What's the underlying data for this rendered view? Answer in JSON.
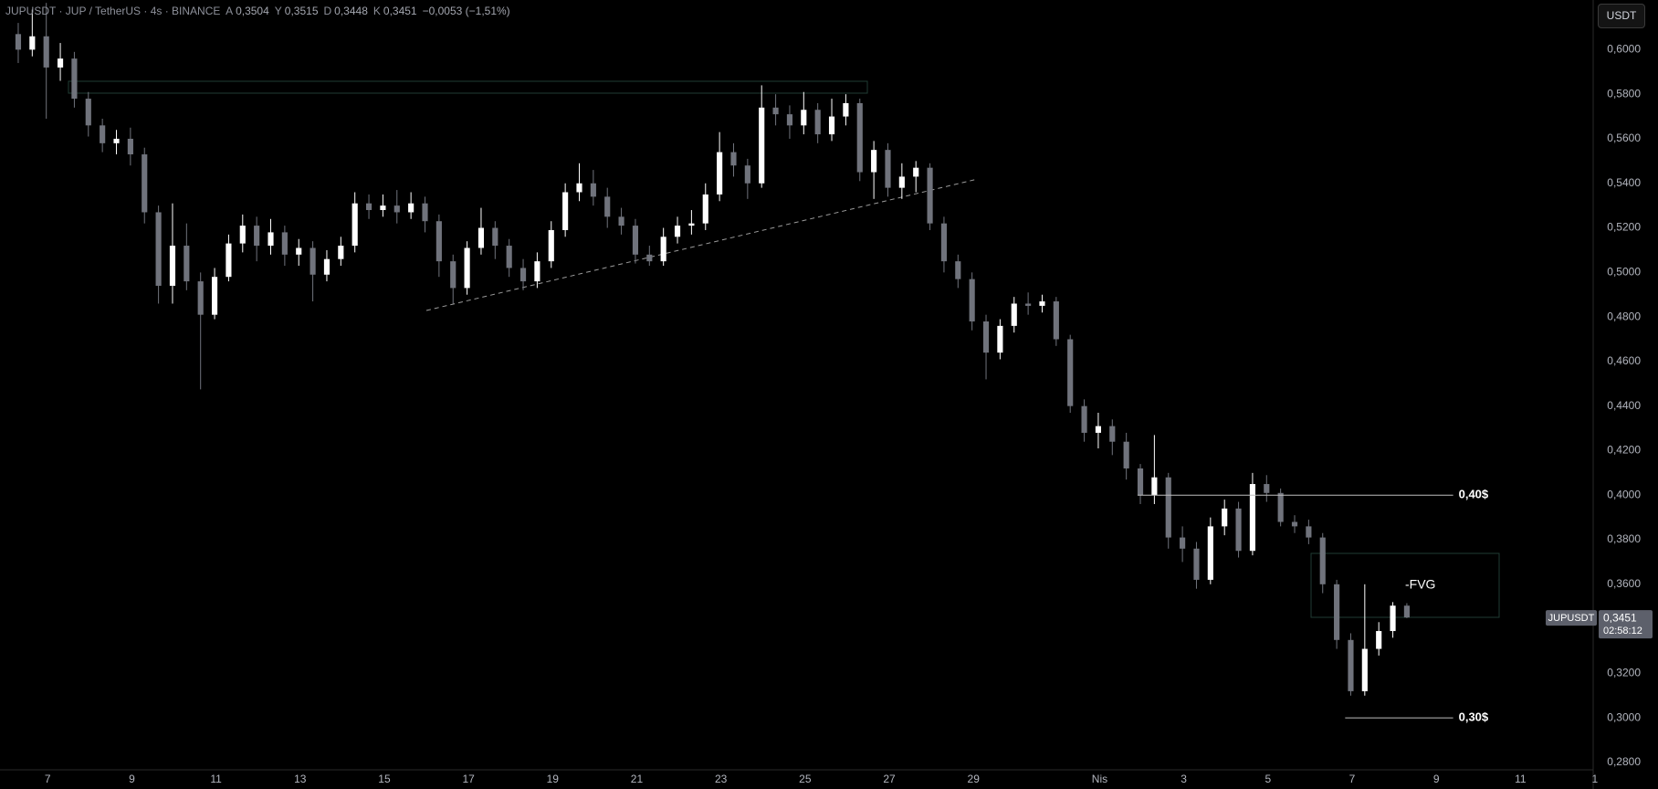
{
  "chart_data": {
    "type": "candlestick",
    "title": "JUPUSDT · JUP / TetherUS · 4s · BINANCE",
    "ohlc_legend": [
      {
        "key": "A",
        "value": "0,3504"
      },
      {
        "key": "Y",
        "value": "0,3515"
      },
      {
        "key": "D",
        "value": "0,3448"
      },
      {
        "key": "K",
        "value": "0,3451"
      }
    ],
    "change": "−0,0053 (−1,51%)",
    "up_color": "#ffffff",
    "down_color": "#70737c",
    "categories": [
      null,
      null,
      null,
      null,
      null,
      null,
      null,
      null,
      null,
      null,
      null,
      null,
      null,
      null,
      null,
      null,
      null,
      null,
      null,
      null,
      null,
      null,
      null,
      null,
      null,
      null,
      null,
      null,
      null,
      null,
      null,
      null,
      null,
      null,
      null,
      null,
      null,
      null,
      null,
      null,
      null,
      null,
      null,
      null,
      null,
      null,
      null,
      null,
      null,
      null,
      null,
      null,
      null,
      null,
      null,
      null,
      null,
      null,
      null,
      null,
      null,
      null,
      null,
      null,
      null,
      null,
      null,
      null,
      null,
      null,
      null,
      null,
      null,
      null,
      null,
      null,
      null,
      null,
      null,
      null,
      null,
      null,
      null,
      null,
      null,
      null,
      null,
      null,
      null,
      null,
      null,
      null,
      null,
      null,
      null,
      null,
      null,
      null,
      null,
      null
    ],
    "open": [
      0.607,
      0.6,
      0.606,
      0.592,
      0.596,
      0.578,
      0.566,
      0.558,
      0.56,
      0.553,
      0.527,
      0.494,
      0.512,
      0.496,
      0.481,
      0.498,
      0.513,
      0.521,
      0.512,
      0.518,
      0.508,
      0.511,
      0.499,
      0.506,
      0.512,
      0.531,
      0.528,
      0.53,
      0.527,
      0.531,
      0.523,
      0.505,
      0.493,
      0.511,
      0.52,
      0.512,
      0.502,
      0.496,
      0.505,
      0.519,
      0.536,
      0.54,
      0.534,
      0.525,
      0.521,
      0.508,
      0.505,
      0.516,
      0.521,
      0.522,
      0.535,
      0.554,
      0.548,
      0.54,
      0.574,
      0.571,
      0.566,
      0.573,
      0.562,
      0.57,
      0.576,
      0.545,
      0.555,
      0.538,
      0.543,
      0.547,
      0.522,
      0.505,
      0.497,
      0.478,
      0.464,
      0.476,
      0.486,
      0.485,
      0.487,
      0.47,
      0.44,
      0.428,
      0.431,
      0.424,
      0.412,
      0.4,
      0.408,
      0.381,
      0.376,
      0.362,
      0.386,
      0.394,
      0.375,
      0.405,
      0.401,
      0.388,
      0.386,
      0.381,
      0.36,
      0.335,
      0.312,
      0.331,
      0.339,
      0.3504
    ],
    "high": [
      0.612,
      0.618,
      0.621,
      0.603,
      0.599,
      0.581,
      0.569,
      0.564,
      0.565,
      0.556,
      0.53,
      0.531,
      0.522,
      0.5,
      0.502,
      0.517,
      0.526,
      0.525,
      0.524,
      0.521,
      0.515,
      0.514,
      0.51,
      0.516,
      0.536,
      0.535,
      0.535,
      0.537,
      0.536,
      0.534,
      0.526,
      0.508,
      0.514,
      0.529,
      0.523,
      0.515,
      0.506,
      0.509,
      0.523,
      0.54,
      0.549,
      0.546,
      0.538,
      0.529,
      0.524,
      0.512,
      0.52,
      0.525,
      0.528,
      0.54,
      0.563,
      0.558,
      0.551,
      0.584,
      0.58,
      0.575,
      0.581,
      0.576,
      0.578,
      0.58,
      0.578,
      0.559,
      0.558,
      0.549,
      0.55,
      0.549,
      0.525,
      0.508,
      0.5,
      0.481,
      0.479,
      0.489,
      0.491,
      0.49,
      0.489,
      0.472,
      0.443,
      0.437,
      0.434,
      0.428,
      0.414,
      0.427,
      0.41,
      0.386,
      0.379,
      0.39,
      0.398,
      0.397,
      0.41,
      0.409,
      0.403,
      0.391,
      0.389,
      0.383,
      0.362,
      0.338,
      0.36,
      0.343,
      0.352,
      0.3515
    ],
    "low": [
      0.594,
      0.597,
      0.569,
      0.586,
      0.574,
      0.561,
      0.554,
      0.553,
      0.548,
      0.522,
      0.486,
      0.486,
      0.492,
      0.4475,
      0.479,
      0.496,
      0.509,
      0.505,
      0.508,
      0.503,
      0.503,
      0.487,
      0.496,
      0.503,
      0.509,
      0.524,
      0.525,
      0.522,
      0.524,
      0.518,
      0.498,
      0.486,
      0.49,
      0.508,
      0.506,
      0.498,
      0.492,
      0.493,
      0.502,
      0.516,
      0.532,
      0.53,
      0.52,
      0.517,
      0.504,
      0.503,
      0.503,
      0.513,
      0.517,
      0.519,
      0.532,
      0.543,
      0.533,
      0.538,
      0.566,
      0.56,
      0.562,
      0.558,
      0.559,
      0.566,
      0.541,
      0.533,
      0.534,
      0.533,
      0.536,
      0.519,
      0.5,
      0.493,
      0.474,
      0.452,
      0.461,
      0.473,
      0.481,
      0.482,
      0.467,
      0.437,
      0.424,
      0.421,
      0.418,
      0.407,
      0.396,
      0.396,
      0.376,
      0.37,
      0.358,
      0.36,
      0.382,
      0.372,
      0.373,
      0.397,
      0.386,
      0.383,
      0.378,
      0.356,
      0.331,
      0.31,
      0.31,
      0.328,
      0.336,
      0.3448
    ],
    "close": [
      0.6,
      0.606,
      0.592,
      0.596,
      0.578,
      0.566,
      0.558,
      0.56,
      0.553,
      0.527,
      0.494,
      0.512,
      0.496,
      0.481,
      0.498,
      0.513,
      0.521,
      0.512,
      0.518,
      0.508,
      0.511,
      0.499,
      0.506,
      0.512,
      0.531,
      0.528,
      0.53,
      0.527,
      0.531,
      0.523,
      0.505,
      0.493,
      0.511,
      0.52,
      0.512,
      0.502,
      0.496,
      0.505,
      0.519,
      0.536,
      0.54,
      0.534,
      0.525,
      0.521,
      0.508,
      0.505,
      0.516,
      0.521,
      0.522,
      0.535,
      0.554,
      0.548,
      0.54,
      0.574,
      0.571,
      0.566,
      0.573,
      0.562,
      0.57,
      0.576,
      0.545,
      0.555,
      0.538,
      0.543,
      0.547,
      0.522,
      0.505,
      0.497,
      0.478,
      0.464,
      0.476,
      0.486,
      0.485,
      0.487,
      0.47,
      0.44,
      0.428,
      0.431,
      0.424,
      0.412,
      0.4,
      0.408,
      0.381,
      0.376,
      0.362,
      0.386,
      0.394,
      0.375,
      0.405,
      0.401,
      0.388,
      0.386,
      0.381,
      0.36,
      0.335,
      0.312,
      0.331,
      0.339,
      0.3504,
      0.3451
    ],
    "xlim": [
      -1.3,
      113
    ],
    "xticks": [
      {
        "value": 2.1,
        "label": "7"
      },
      {
        "value": 8.1,
        "label": "9"
      },
      {
        "value": 14.1,
        "label": "11"
      },
      {
        "value": 20.1,
        "label": "13"
      },
      {
        "value": 26.1,
        "label": "15"
      },
      {
        "value": 32.1,
        "label": "17"
      },
      {
        "value": 38.1,
        "label": "19"
      },
      {
        "value": 44.1,
        "label": "21"
      },
      {
        "value": 50.1,
        "label": "23"
      },
      {
        "value": 56.1,
        "label": "25"
      },
      {
        "value": 62.1,
        "label": "27"
      },
      {
        "value": 68.1,
        "label": "29"
      },
      {
        "value": 77.1,
        "label": "Nis"
      },
      {
        "value": 83.1,
        "label": "3"
      },
      {
        "value": 89.1,
        "label": "5"
      },
      {
        "value": 95.1,
        "label": "7"
      },
      {
        "value": 101.1,
        "label": "9"
      },
      {
        "value": 107.1,
        "label": "11"
      },
      {
        "value": 112.4,
        "label": "1"
      }
    ],
    "ylim": [
      0.2767,
      0.6223
    ],
    "yticks": [
      {
        "value": 0.28,
        "label": "0,2800"
      },
      {
        "value": 0.3,
        "label": "0,3000"
      },
      {
        "value": 0.32,
        "label": "0,3200"
      },
      {
        "value": 0.34,
        "label": "0,3400"
      },
      {
        "value": 0.36,
        "label": "0,3600"
      },
      {
        "value": 0.38,
        "label": "0,3800"
      },
      {
        "value": 0.4,
        "label": "0,4000"
      },
      {
        "value": 0.42,
        "label": "0,4200"
      },
      {
        "value": 0.44,
        "label": "0,4400"
      },
      {
        "value": 0.46,
        "label": "0,4600"
      },
      {
        "value": 0.48,
        "label": "0,4800"
      },
      {
        "value": 0.5,
        "label": "0,5000"
      },
      {
        "value": 0.52,
        "label": "0,5200"
      },
      {
        "value": 0.54,
        "label": "0,5400"
      },
      {
        "value": 0.56,
        "label": "0,5600"
      },
      {
        "value": 0.58,
        "label": "0,5800"
      },
      {
        "value": 0.6,
        "label": "0,6000"
      }
    ],
    "grid": false,
    "levels": [
      {
        "value": 0.4,
        "label": "0,40$"
      },
      {
        "value": 0.3,
        "label": "0,30$"
      }
    ],
    "fvg_label": "-FVG",
    "last_price": {
      "value": 0.3451,
      "label": "0,3451"
    },
    "symbol_tag": "JUPUSDT",
    "countdown": "02:58:12"
  },
  "toolbar": {
    "currency": "USDT"
  }
}
